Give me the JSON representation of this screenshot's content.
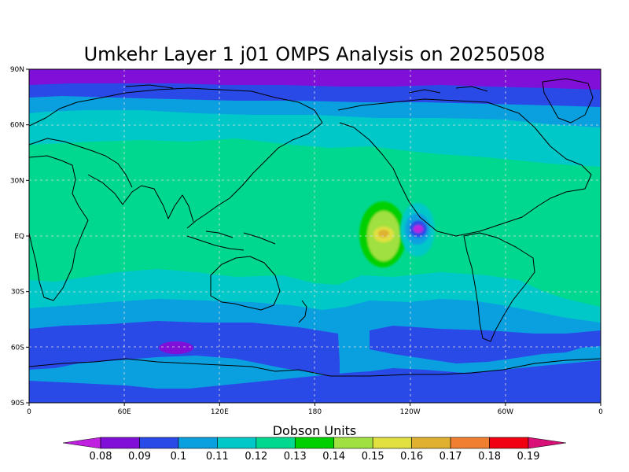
{
  "title": "Umkehr Layer 1 j01 OMPS Analysis on 20250508",
  "colorbar": {
    "title": "Dobson Units",
    "levels": [
      "0.08",
      "0.09",
      "0.1",
      "0.11",
      "0.12",
      "0.13",
      "0.14",
      "0.15",
      "0.16",
      "0.17",
      "0.18",
      "0.19"
    ],
    "colors": [
      "#c020e0",
      "#8010d8",
      "#2a4ae8",
      "#0aa0e0",
      "#00c8c8",
      "#00d890",
      "#00d000",
      "#a0e040",
      "#e0e040",
      "#e0b030",
      "#f08030",
      "#f00010",
      "#d81078"
    ]
  },
  "map": {
    "y_ticks": [
      "90N",
      "60N",
      "30N",
      "EQ",
      "30S",
      "60S",
      "90S"
    ],
    "x_ticks": [
      "0",
      "60E",
      "120E",
      "180",
      "120W",
      "60W",
      "0"
    ]
  }
}
